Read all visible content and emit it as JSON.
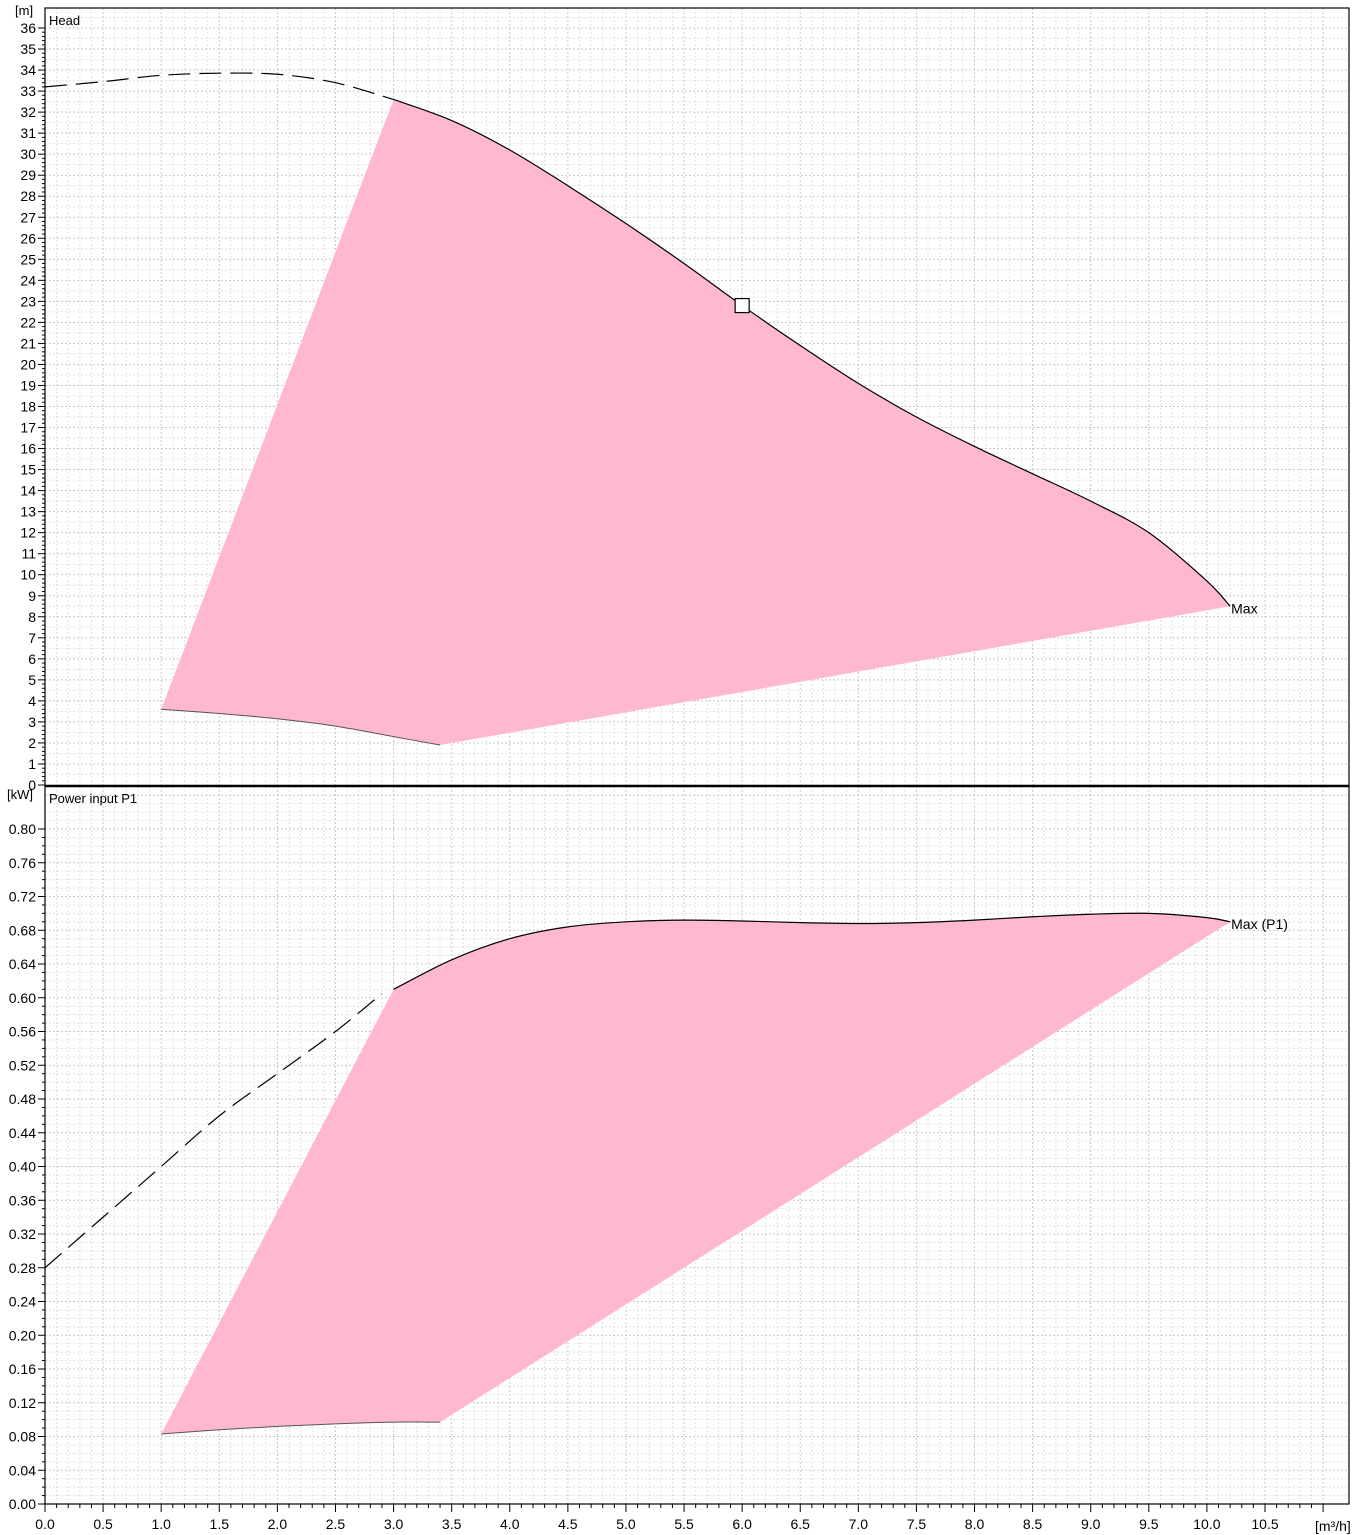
{
  "chart_data": [
    {
      "type": "area",
      "title": "Head",
      "ylabel": "[m]",
      "ylim": [
        0,
        37
      ],
      "yticks_step": 1,
      "xlim": [
        0,
        11
      ],
      "grid": true,
      "fill_color": "#ffb8d0",
      "curve_label": "Max",
      "operating_point": {
        "x": 6.0,
        "y": 22.8
      },
      "max_curve": {
        "x": [
          3.0,
          3.5,
          4.0,
          4.5,
          5.0,
          5.5,
          6.0,
          6.5,
          7.0,
          7.5,
          8.0,
          8.5,
          9.0,
          9.5,
          10.0,
          10.2
        ],
        "y": [
          32.6,
          31.6,
          30.2,
          28.5,
          26.7,
          24.8,
          22.8,
          20.9,
          19.1,
          17.5,
          16.1,
          14.8,
          13.5,
          12.0,
          9.7,
          8.5
        ]
      },
      "dashed_extension": {
        "x": [
          0.0,
          0.5,
          1.0,
          1.5,
          2.0,
          2.5,
          3.0
        ],
        "y": [
          33.2,
          33.45,
          33.75,
          33.85,
          33.8,
          33.4,
          32.6
        ]
      },
      "min_curve": {
        "x": [
          1.0,
          1.5,
          2.0,
          2.5,
          3.0,
          3.4
        ],
        "y": [
          3.6,
          3.4,
          3.15,
          2.8,
          2.3,
          1.9
        ]
      },
      "lower_boundary": {
        "x": [
          3.4,
          10.2
        ],
        "y": [
          1.9,
          8.5
        ]
      },
      "left_boundary": {
        "x": [
          1.0,
          3.0
        ],
        "y": [
          3.6,
          32.6
        ]
      }
    },
    {
      "type": "area",
      "title": "Power input P1",
      "ylabel": "[kW]",
      "ylim": [
        0,
        0.84
      ],
      "yticks_step": 0.04,
      "xlim": [
        0,
        11
      ],
      "xlabel": "[m³/h]",
      "xticks_step": 0.5,
      "grid": true,
      "fill_color": "#ffb8d0",
      "curve_label": "Max (P1)",
      "max_curve": {
        "x": [
          3.0,
          3.5,
          4.0,
          4.5,
          5.0,
          5.5,
          6.0,
          6.5,
          7.0,
          7.5,
          8.0,
          8.5,
          9.0,
          9.5,
          10.0,
          10.2
        ],
        "y": [
          0.61,
          0.645,
          0.67,
          0.684,
          0.69,
          0.692,
          0.691,
          0.689,
          0.688,
          0.689,
          0.692,
          0.696,
          0.699,
          0.7,
          0.695,
          0.69
        ]
      },
      "dashed_extension": {
        "x": [
          0.0,
          0.5,
          1.0,
          1.5,
          2.0,
          2.5,
          2.9
        ],
        "y": [
          0.28,
          0.34,
          0.4,
          0.46,
          0.51,
          0.56,
          0.605
        ]
      },
      "min_curve": {
        "x": [
          1.0,
          1.5,
          2.0,
          2.5,
          3.0,
          3.4
        ],
        "y": [
          0.083,
          0.088,
          0.092,
          0.095,
          0.097,
          0.097
        ]
      },
      "lower_boundary": {
        "x": [
          3.4,
          10.2
        ],
        "y": [
          0.097,
          0.69
        ]
      },
      "left_boundary": {
        "x": [
          1.0,
          3.0
        ],
        "y": [
          0.083,
          0.61
        ]
      }
    }
  ]
}
